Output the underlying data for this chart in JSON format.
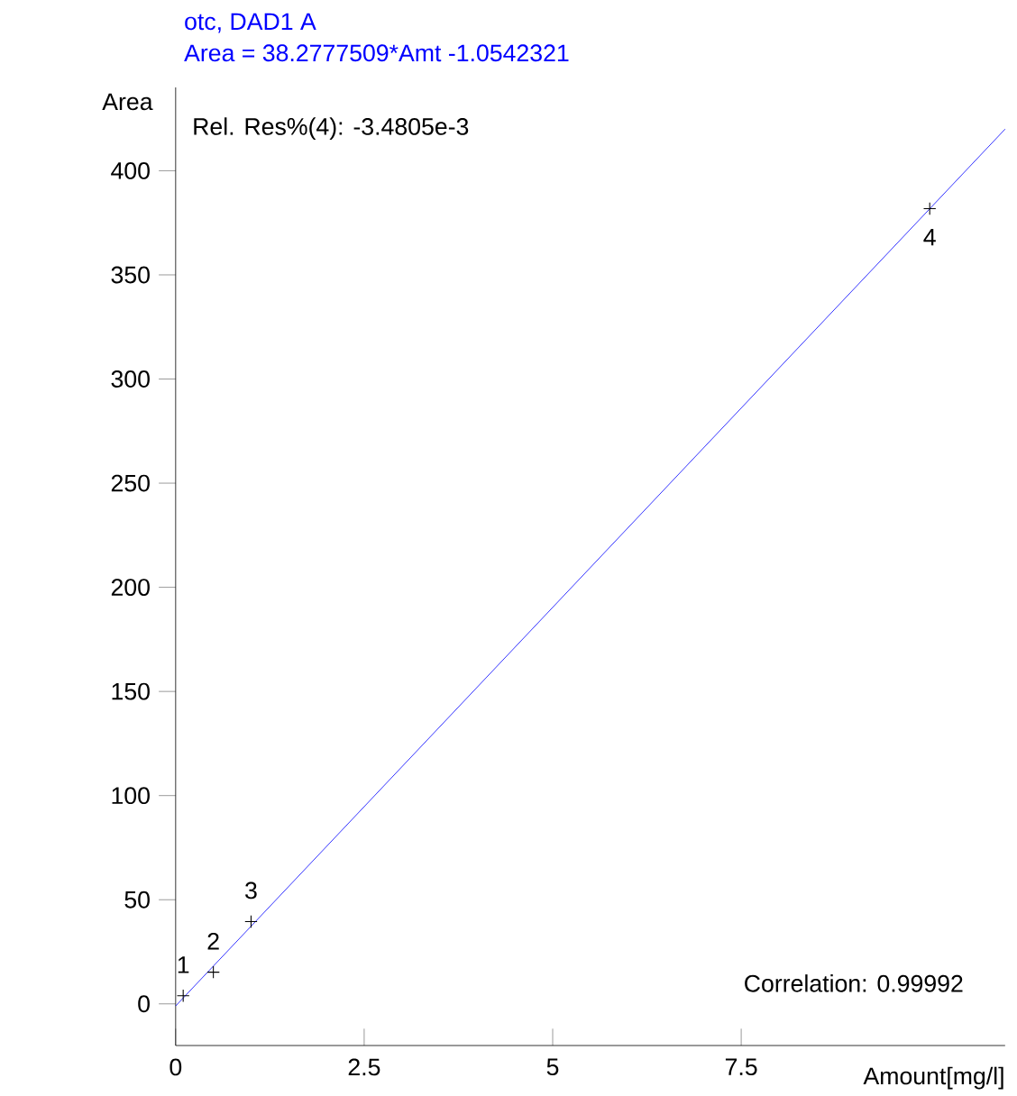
{
  "chart_data": {
    "type": "scatter",
    "title": "otc, DAD1 A",
    "subtitle": "Area = 38.2777509*Amt -1.0542321",
    "xlabel": "Amount[mg/l]",
    "ylabel": "Area",
    "xlim": [
      0,
      11
    ],
    "ylim": [
      -20,
      440
    ],
    "xticks": [
      0,
      2.5,
      5,
      7.5
    ],
    "yticks": [
      0,
      50,
      100,
      150,
      200,
      250,
      300,
      350,
      400
    ],
    "marker": "cross",
    "grid": false,
    "series": [
      {
        "x": [
          0.1,
          0.5,
          1,
          10
        ],
        "values": [
          3.9,
          15.2,
          39.5,
          381.8
        ],
        "color": "#000000"
      },
      {
        "type": "line",
        "x": [
          0,
          11
        ],
        "values": [
          -1,
          420
        ],
        "color": "#0000ff",
        "marker": "none"
      }
    ],
    "annotations": [
      {
        "text": "1",
        "x": 0.1,
        "y": 3.9
      },
      {
        "text": "2",
        "x": 0.5,
        "y": 15.2
      },
      {
        "text": "3",
        "x": 1,
        "y": 39.5
      },
      {
        "text": "4",
        "x": 10,
        "y": 381.8
      },
      "Rel. Res%(4): -3.4805e-3",
      "Correlation: 0.99992"
    ]
  }
}
